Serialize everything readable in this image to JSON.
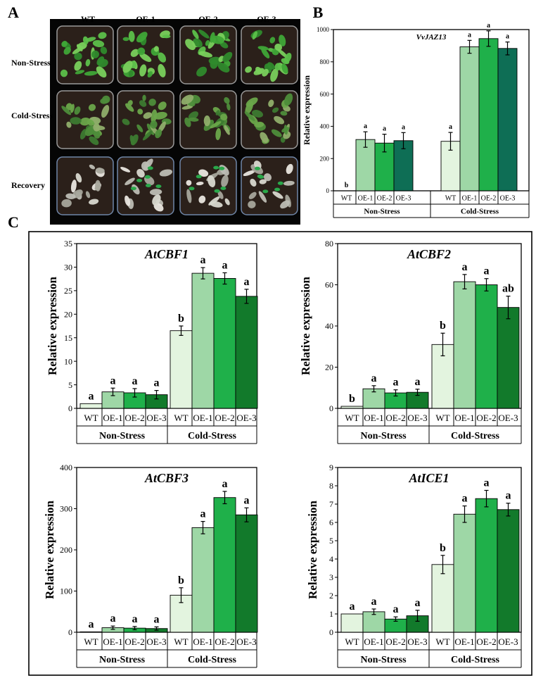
{
  "panel_labels": [
    "A",
    "B",
    "C"
  ],
  "photo_panel": {
    "columns": [
      "WT",
      "OE-1",
      "OE-2",
      "OE-3"
    ],
    "rows": [
      "Non-Stress",
      "Cold-Stress",
      "Recovery"
    ]
  },
  "colors": {
    "wt": "#e3f4df",
    "oe1": "#9ed7a6",
    "oe2": "#1fb04a",
    "oe3_dark": "#127a2b",
    "oe3_teal": "#0e6e55",
    "frame": "#000000"
  },
  "chart_data": [
    {
      "id": "B",
      "type": "bar",
      "title": "VvJAZ13",
      "ylabel": "Relative expression",
      "ylim": [
        0,
        1000
      ],
      "yticks": [
        "0",
        "200",
        "400",
        "600",
        "800",
        "1000"
      ],
      "groups": [
        "Non-Stress",
        "Cold-Stress"
      ],
      "categories": [
        "WT",
        "OE-1",
        "OE-2",
        "OE-3"
      ],
      "series": [
        {
          "name": "Non-Stress",
          "values": [
            0,
            318,
            296,
            311
          ],
          "errors": [
            0,
            48,
            55,
            50
          ],
          "letters": [
            "b",
            "a",
            "a",
            "a"
          ]
        },
        {
          "name": "Cold-Stress",
          "values": [
            307,
            893,
            944,
            883
          ],
          "errors": [
            55,
            40,
            48,
            40
          ],
          "letters": [
            "a",
            "a",
            "a",
            "a"
          ]
        }
      ]
    },
    {
      "id": "C1",
      "type": "bar",
      "title": "AtCBF1",
      "ylabel": "Relative expression",
      "ylim": [
        0,
        35
      ],
      "yticks": [
        "0",
        "5",
        "10",
        "15",
        "20",
        "25",
        "30",
        "35"
      ],
      "groups": [
        "Non-Stress",
        "Cold-Stress"
      ],
      "categories": [
        "WT",
        "OE-1",
        "OE-2",
        "OE-3"
      ],
      "series": [
        {
          "name": "Non-Stress",
          "values": [
            1.0,
            3.5,
            3.3,
            2.9
          ],
          "errors": [
            0,
            0.8,
            0.9,
            0.9
          ],
          "letters": [
            "a",
            "a",
            "a",
            "a"
          ]
        },
        {
          "name": "Cold-Stress",
          "values": [
            16.5,
            28.7,
            27.6,
            23.8
          ],
          "errors": [
            1.0,
            1.2,
            1.2,
            1.5
          ],
          "letters": [
            "b",
            "a",
            "a",
            "a"
          ]
        }
      ]
    },
    {
      "id": "C2",
      "type": "bar",
      "title": "AtCBF2",
      "ylabel": "Relative expression",
      "ylim": [
        0,
        80
      ],
      "yticks": [
        "0",
        "20",
        "40",
        "60",
        "80"
      ],
      "groups": [
        "Non-Stress",
        "Cold-Stress"
      ],
      "categories": [
        "WT",
        "OE-1",
        "OE-2",
        "OE-3"
      ],
      "series": [
        {
          "name": "Non-Stress",
          "values": [
            1.0,
            9.5,
            7.5,
            7.8
          ],
          "errors": [
            0,
            1.5,
            1.5,
            1.5
          ],
          "letters": [
            "b",
            "a",
            "a",
            "a"
          ]
        },
        {
          "name": "Cold-Stress",
          "values": [
            31,
            61.5,
            60,
            49
          ],
          "errors": [
            5.5,
            3.5,
            3,
            5.5
          ],
          "letters": [
            "b",
            "a",
            "a",
            "ab"
          ]
        }
      ]
    },
    {
      "id": "C3",
      "type": "bar",
      "title": "AtCBF3",
      "ylabel": "Relative expression",
      "ylim": [
        0,
        400
      ],
      "yticks": [
        "0",
        "100",
        "200",
        "300",
        "400"
      ],
      "groups": [
        "Non-Stress",
        "Cold-Stress"
      ],
      "categories": [
        "WT",
        "OE-1",
        "OE-2",
        "OE-3"
      ],
      "series": [
        {
          "name": "Non-Stress",
          "values": [
            1,
            11,
            10,
            9
          ],
          "errors": [
            0,
            4,
            4,
            4
          ],
          "letters": [
            "a",
            "a",
            "a",
            "a"
          ]
        },
        {
          "name": "Cold-Stress",
          "values": [
            90,
            254,
            327,
            285
          ],
          "errors": [
            18,
            15,
            15,
            17
          ],
          "letters": [
            "b",
            "a",
            "a",
            "a"
          ]
        }
      ]
    },
    {
      "id": "C4",
      "type": "bar",
      "title": "AtICE1",
      "ylabel": "Relative expression",
      "ylim": [
        0,
        9
      ],
      "yticks": [
        "0",
        "1",
        "2",
        "3",
        "4",
        "5",
        "6",
        "7",
        "8",
        "9"
      ],
      "groups": [
        "Non-Stress",
        "Cold-Stress"
      ],
      "categories": [
        "WT",
        "OE-1",
        "OE-2",
        "OE-3"
      ],
      "series": [
        {
          "name": "Non-Stress",
          "values": [
            1.0,
            1.12,
            0.72,
            0.9
          ],
          "errors": [
            0,
            0.15,
            0.12,
            0.3
          ],
          "letters": [
            "a",
            "a",
            "a",
            "a"
          ]
        },
        {
          "name": "Cold-Stress",
          "values": [
            3.7,
            6.45,
            7.3,
            6.7
          ],
          "errors": [
            0.5,
            0.45,
            0.45,
            0.35
          ],
          "letters": [
            "b",
            "a",
            "a",
            "a"
          ]
        }
      ]
    }
  ]
}
